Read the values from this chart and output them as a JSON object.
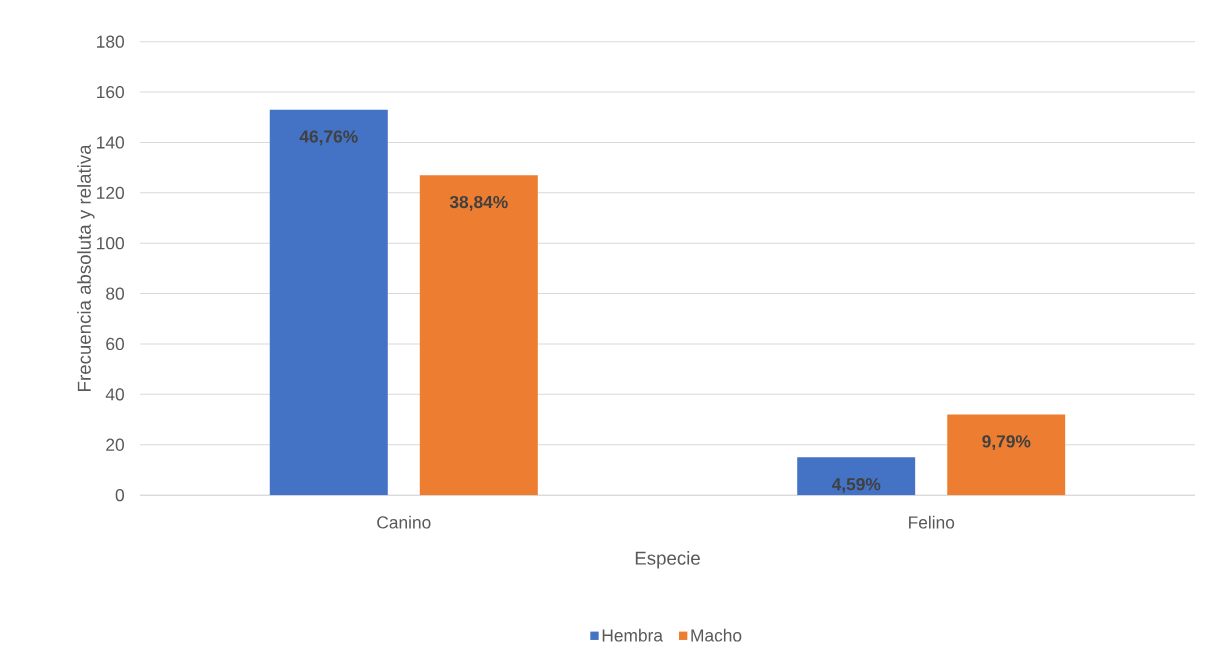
{
  "chart_data": {
    "type": "bar",
    "xlabel": "Especie",
    "ylabel": "Frecuencia absoluta y relativa",
    "categories": [
      "Canino",
      "Felino"
    ],
    "series": [
      {
        "name": "Hembra",
        "color": "#4472c4",
        "values": [
          153,
          15
        ]
      },
      {
        "name": "Macho",
        "color": "#ed7d31",
        "values": [
          127,
          32
        ]
      }
    ],
    "annotations": [
      "46,76%",
      "38,84%",
      "4,59%",
      "9,79%"
    ],
    "ylim": [
      0,
      180
    ],
    "yticks": [
      0,
      20,
      40,
      60,
      80,
      100,
      120,
      140,
      160,
      180
    ],
    "grid": "y",
    "legend": "bottom"
  }
}
